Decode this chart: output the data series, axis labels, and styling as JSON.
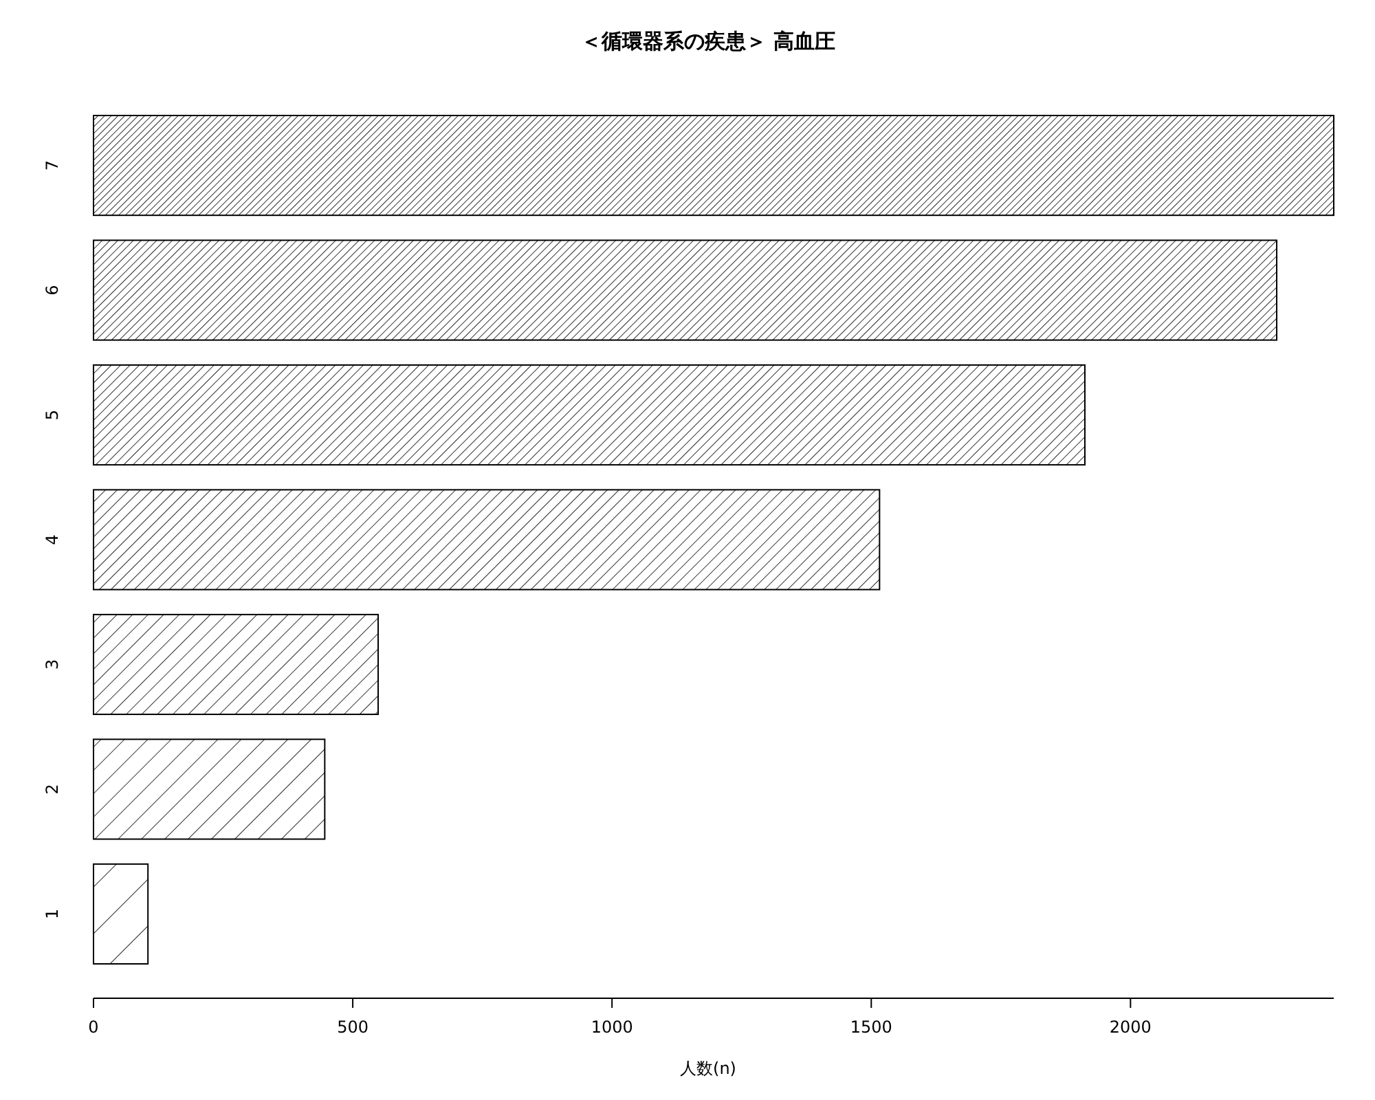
{
  "chart_data": {
    "type": "bar",
    "orientation": "horizontal",
    "title": "＜循環器系の疾患＞ 高血圧",
    "xlabel": "人数(n)",
    "categories": [
      "7",
      "6",
      "5",
      "4",
      "3",
      "2",
      "1"
    ],
    "values": [
      2392,
      2282,
      1912,
      1516,
      549,
      446,
      105
    ],
    "color": "#000000",
    "xlim": [
      0,
      2392
    ],
    "xticks": [
      0,
      500,
      1000,
      1500,
      2000
    ]
  }
}
